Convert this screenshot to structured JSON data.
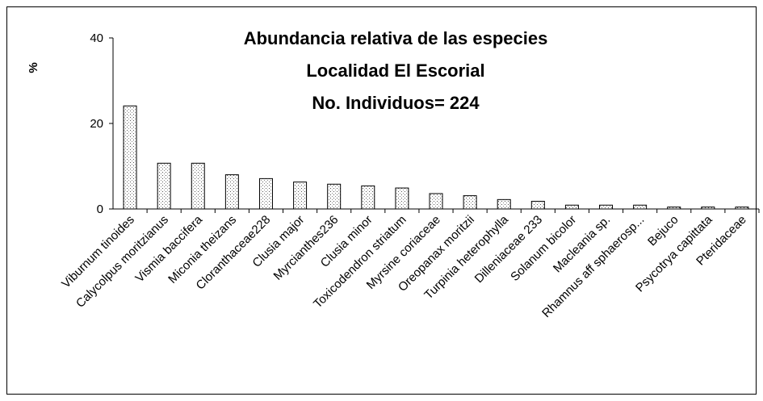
{
  "chart_data": {
    "type": "bar",
    "title": [
      "Abundancia relativa de las especies",
      "Localidad  El Escorial",
      "No. Individuos= 224"
    ],
    "y_label": "%",
    "categories": [
      "Viburnum tinoides",
      "Calycolpus moritzianus",
      "Vismia baccifera",
      "Miconia theizans",
      "Cloranthaceae228",
      "Clusia major",
      "Myrcianthes236",
      "Clusia minor",
      "Toxicodendron striatum",
      "Myrsine coriaceae",
      "Oreopanax moritzii",
      "Turpinia heterophylla",
      "Dilleniaceae 233",
      "Solanum bicolor",
      "Macleania sp.",
      "Rhamnus aff sphaerosp...",
      "Bejuco",
      "Psycotrya capittata",
      "Pteridaceae"
    ],
    "values": [
      24.1,
      10.7,
      10.7,
      8.0,
      7.1,
      6.3,
      5.8,
      5.4,
      4.9,
      3.6,
      3.1,
      2.2,
      1.8,
      0.9,
      0.9,
      0.9,
      0.45,
      0.45,
      0.45
    ],
    "color": "#ffffff",
    "ylim": [
      0,
      40
    ],
    "yticks": [
      0,
      20,
      40
    ],
    "grid": false
  }
}
